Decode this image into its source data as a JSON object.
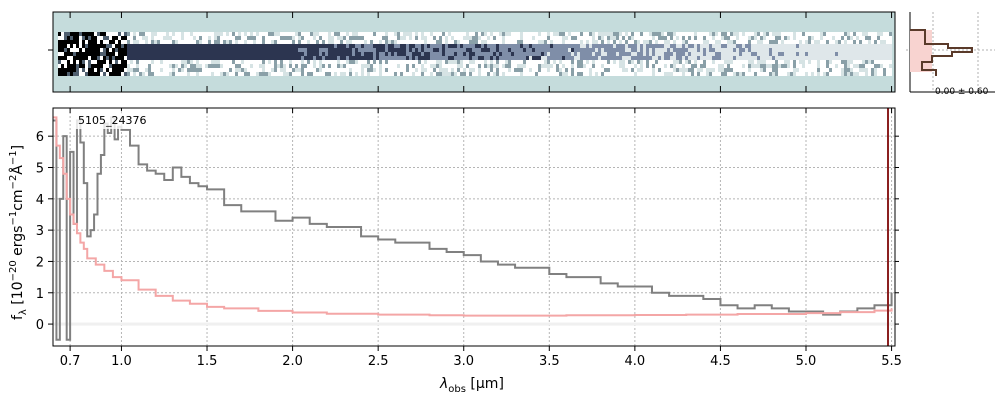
{
  "chart_data": {
    "type": "line",
    "object_label": "5105_24376",
    "xlabel_main": "λ",
    "xlabel_sub": "obs",
    "xlabel_unit": " [μm]",
    "ylabel": "f_λ [10^-20 ergs^-1 cm^-2 Å^-1]",
    "ylabel_parts": {
      "f": "f",
      "lambda_sub": "λ",
      "open": " [10",
      "exp1": "−20",
      "mid1": " ergs",
      "exp2": "−1",
      "mid2": "cm",
      "exp3": "−2",
      "mid3": "Å",
      "exp4": "−1",
      "close": "]"
    },
    "x_ticks": [
      "0.7",
      "1.0",
      "1.5",
      "2.0",
      "2.5",
      "3.0",
      "3.5",
      "4.0",
      "4.5",
      "5.0",
      "5.5"
    ],
    "x_tick_values": [
      0.7,
      1.0,
      1.5,
      2.0,
      2.5,
      3.0,
      3.5,
      4.0,
      4.5,
      5.0,
      5.5
    ],
    "y_ticks": [
      "0",
      "1",
      "2",
      "3",
      "4",
      "5",
      "6"
    ],
    "y_tick_values": [
      0,
      1,
      2,
      3,
      4,
      5,
      6
    ],
    "xlim": [
      0.6,
      5.52
    ],
    "ylim": [
      -0.7,
      6.9
    ],
    "grid": true,
    "hist_label": "0.00 ± 0.60",
    "series": [
      {
        "color": "#808080",
        "x": [
          0.6,
          0.62,
          0.64,
          0.66,
          0.68,
          0.7,
          0.72,
          0.74,
          0.76,
          0.78,
          0.8,
          0.82,
          0.84,
          0.86,
          0.88,
          0.9,
          0.92,
          0.94,
          0.96,
          0.98,
          1.0,
          1.05,
          1.1,
          1.15,
          1.2,
          1.25,
          1.3,
          1.35,
          1.4,
          1.45,
          1.5,
          1.6,
          1.7,
          1.8,
          1.9,
          2.0,
          2.1,
          2.2,
          2.3,
          2.4,
          2.5,
          2.6,
          2.7,
          2.8,
          2.9,
          3.0,
          3.1,
          3.2,
          3.3,
          3.4,
          3.5,
          3.6,
          3.7,
          3.8,
          3.9,
          4.0,
          4.1,
          4.2,
          4.3,
          4.4,
          4.5,
          4.6,
          4.7,
          4.8,
          4.9,
          5.0,
          5.1,
          5.2,
          5.3,
          5.4,
          5.5
        ],
        "y": [
          6.5,
          -0.5,
          4.0,
          6.0,
          -0.5,
          5.5,
          3.2,
          6.5,
          5.8,
          4.5,
          2.8,
          3.0,
          3.5,
          4.8,
          5.4,
          6.4,
          6.1,
          6.6,
          5.9,
          6.3,
          6.2,
          5.7,
          5.1,
          4.9,
          4.8,
          4.6,
          5.0,
          4.7,
          4.5,
          4.4,
          4.3,
          3.8,
          3.6,
          3.6,
          3.3,
          3.4,
          3.2,
          3.1,
          3.1,
          2.8,
          2.7,
          2.6,
          2.6,
          2.4,
          2.3,
          2.2,
          2.0,
          1.9,
          1.8,
          1.8,
          1.6,
          1.5,
          1.5,
          1.3,
          1.2,
          1.2,
          1.0,
          0.9,
          0.9,
          0.8,
          0.6,
          0.5,
          0.6,
          0.5,
          0.4,
          0.4,
          0.3,
          0.4,
          0.5,
          0.6,
          1.0
        ]
      },
      {
        "color": "#f4a6a6",
        "x": [
          0.6,
          0.62,
          0.64,
          0.66,
          0.68,
          0.7,
          0.72,
          0.74,
          0.76,
          0.78,
          0.8,
          0.85,
          0.9,
          0.95,
          1.0,
          1.1,
          1.2,
          1.3,
          1.4,
          1.5,
          1.6,
          1.8,
          2.0,
          2.2,
          2.5,
          2.8,
          3.0,
          3.3,
          3.6,
          4.0,
          4.3,
          4.6,
          5.0,
          5.2,
          5.4,
          5.5
        ],
        "y": [
          6.6,
          5.7,
          5.3,
          4.8,
          4.0,
          3.5,
          3.2,
          2.9,
          2.6,
          2.4,
          2.1,
          1.9,
          1.7,
          1.5,
          1.4,
          1.1,
          0.9,
          0.75,
          0.65,
          0.55,
          0.5,
          0.42,
          0.37,
          0.33,
          0.3,
          0.28,
          0.27,
          0.27,
          0.28,
          0.29,
          0.3,
          0.32,
          0.35,
          0.38,
          0.43,
          0.5
        ]
      }
    ]
  }
}
